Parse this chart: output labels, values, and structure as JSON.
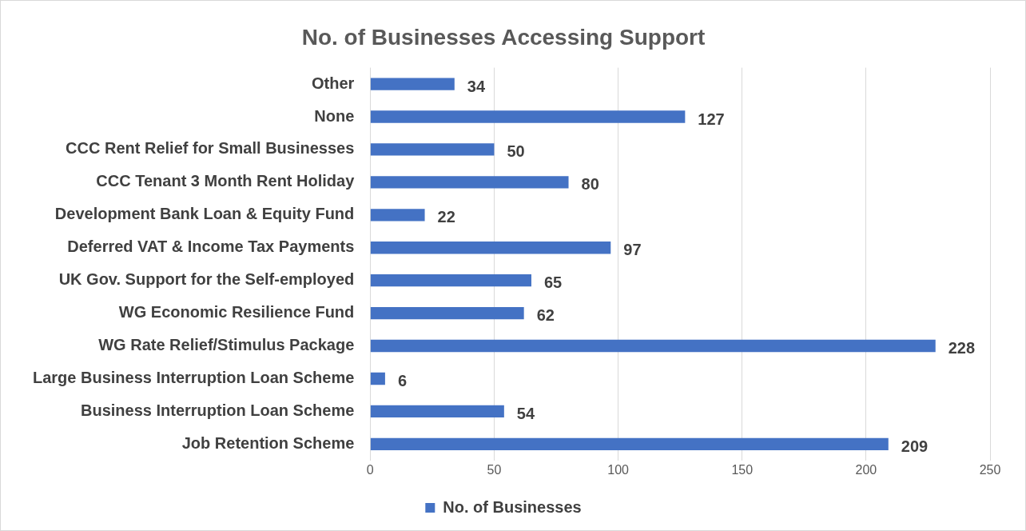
{
  "chart_data": {
    "type": "bar",
    "orientation": "horizontal",
    "title": "No. of Businesses Accessing Support",
    "categories": [
      "Other",
      "None",
      "CCC Rent Relief for Small Businesses",
      "CCC Tenant 3 Month Rent Holiday",
      "Development Bank Loan & Equity Fund",
      "Deferred VAT & Income Tax Payments",
      "UK Gov. Support for the Self-employed",
      "WG Economic Resilience Fund",
      "WG Rate Relief/Stimulus Package",
      "Large Business Interruption Loan Scheme",
      "Business Interruption Loan Scheme",
      "Job Retention Scheme"
    ],
    "series": [
      {
        "name": "No. of Businesses",
        "color": "#4472c4",
        "values": [
          34,
          127,
          50,
          80,
          22,
          97,
          65,
          62,
          228,
          6,
          54,
          209
        ]
      }
    ],
    "xlim": [
      0,
      250
    ],
    "xticks": [
      0,
      50,
      100,
      150,
      200,
      250
    ],
    "grid": "x",
    "legend": "bottom",
    "data_labels": true
  }
}
